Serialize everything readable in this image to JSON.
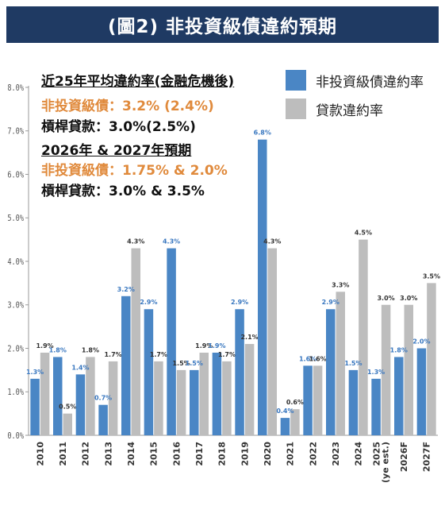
{
  "title": "(圖2) 非投資級債違約預期",
  "annotations": {
    "avg_heading": "近25年平均違約率(金融危機後)",
    "avg_hy": "非投資級債：3.2% (2.4%)",
    "avg_loans": "槓桿貸款：3.0%(2.5%)",
    "forecast_heading": "2026年 & 2027年預期",
    "forecast_hy": "非投資級債：1.75% & 2.0%",
    "forecast_loans": "槓桿貸款：3.0% & 3.5%"
  },
  "colors": {
    "hy": "#4a86c5",
    "loans": "#bdbdbd",
    "hy_label": "#3a78c0",
    "annotation_orange": "#e08a3c",
    "banner": "#1f3a63"
  },
  "chart_data": {
    "type": "bar",
    "categories": [
      "2010",
      "2011",
      "2012",
      "2013",
      "2014",
      "2015",
      "2016",
      "2017",
      "2018",
      "2019",
      "2020",
      "2021",
      "2022",
      "2023",
      "2024",
      "2025\n(ye est.)",
      "2026F",
      "2027F"
    ],
    "series": [
      {
        "name": "非投資級債違約率",
        "values": [
          1.3,
          1.8,
          1.4,
          0.7,
          3.2,
          2.9,
          4.3,
          1.5,
          1.9,
          2.9,
          6.8,
          0.4,
          1.6,
          2.9,
          1.5,
          1.3,
          1.8,
          2.0
        ],
        "labels": [
          "1.3%",
          "1.8%",
          "1.4%",
          "0.7%",
          "3.2%",
          "2.9%",
          "4.3%",
          "1.5%",
          "1.9%",
          "2.9%",
          "6.8%",
          "0.4%",
          "1.6%",
          "2.9%",
          "1.5%",
          "1.3%",
          "1.8%",
          "2.0%"
        ]
      },
      {
        "name": "貸款違約率",
        "values": [
          1.9,
          0.5,
          1.8,
          1.7,
          4.3,
          1.7,
          1.5,
          1.9,
          1.7,
          2.1,
          4.3,
          0.6,
          1.6,
          3.3,
          4.5,
          3.0,
          3.0,
          3.5
        ],
        "labels": [
          "1.9%",
          "0.5%",
          "1.8%",
          "1.7%",
          "4.3%",
          "1.7%",
          "1.5%",
          "1.9%",
          "1.7%",
          "2.1%",
          "4.3%",
          "0.6%",
          "1.6%",
          "3.3%",
          "4.5%",
          "3.0%",
          "3.0%",
          "3.5%"
        ]
      }
    ],
    "ylim": [
      0,
      8
    ],
    "yticks": [
      0,
      1,
      2,
      3,
      4,
      5,
      6,
      7,
      8
    ],
    "ytick_labels": [
      "0.0%",
      "1.0%",
      "2.0%",
      "3.0%",
      "4.0%",
      "5.0%",
      "6.0%",
      "7.0%",
      "8.0%"
    ],
    "legend": "top-right",
    "grid": false
  }
}
